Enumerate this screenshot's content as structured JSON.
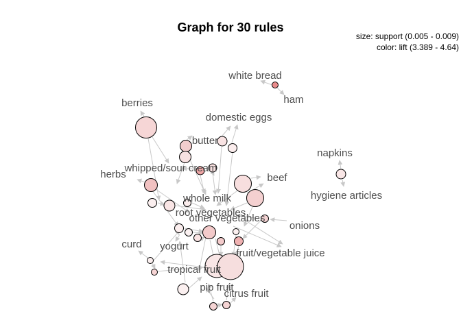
{
  "title": "Graph for 30 rules",
  "legend": {
    "size_text": "size: support (0.005 - 0.009)",
    "color_text": "color: lift (3.389 - 4.64)"
  },
  "colors": {
    "edge": "#c8c8c8",
    "label": "#4d4d4d",
    "node_stroke": "#000000",
    "low_lift": "#f8e6e6",
    "high_lift": "#e88a8a"
  },
  "item_labels": [
    "white bread",
    "ham",
    "berries",
    "domestic eggs",
    "butter",
    "whipped/sour cream",
    "herbs",
    "beef",
    "napkins",
    "hygiene articles",
    "whole milk",
    "root vegetables",
    "other vegetables",
    "onions",
    "curd",
    "yogurt",
    "fruit/vegetable juice",
    "tropical fruit",
    "pip fruit",
    "citrus fruit"
  ]
}
